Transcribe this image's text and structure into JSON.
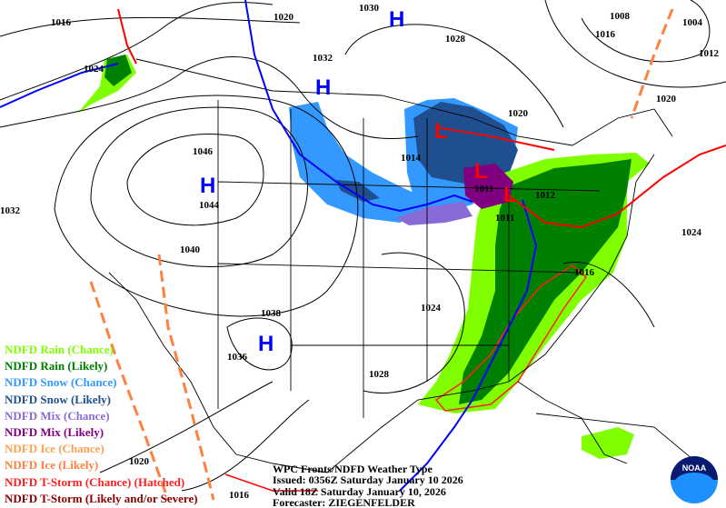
{
  "map": {
    "pressure_labels": [
      "1016",
      "1020",
      "1030",
      "1028",
      "1032",
      "1024",
      "1008",
      "1016",
      "1004",
      "1012",
      "1020",
      "1020",
      "1046",
      "1044",
      "1014",
      "1011",
      "1012",
      "1011",
      "1032",
      "1040",
      "1024",
      "1016",
      "1024",
      "1038",
      "1036",
      "1028",
      "1020",
      "1016"
    ],
    "highs": [
      "H",
      "H",
      "H",
      "H"
    ],
    "lows": [
      "L",
      "L",
      "L"
    ],
    "colors": {
      "rain_chance": "#80ff00",
      "rain_likely": "#008000",
      "snow_chance": "#3399ff",
      "snow_likely": "#1f4f8f",
      "mix_chance": "#8a6ad6",
      "mix_likely": "#800080",
      "ice_chance": "#ffa050",
      "ice_likely": "#ff8040",
      "tstorm_chance": "#ff2020",
      "tstorm_likely": "#8b0000",
      "high": "#0000ff",
      "low": "#ff0000",
      "cold_front": "#0000ff",
      "warm_front": "#ff0000"
    }
  },
  "legend": [
    {
      "label": "NDFD Rain (Chance)",
      "color": "#80ff00"
    },
    {
      "label": "NDFD Rain (Likely)",
      "color": "#008000"
    },
    {
      "label": "NDFD Snow (Chance)",
      "color": "#3399ff"
    },
    {
      "label": "NDFD Snow (Likely)",
      "color": "#1f4f8f"
    },
    {
      "label": "NDFD Mix (Chance)",
      "color": "#8a6ad6"
    },
    {
      "label": "NDFD Mix (Likely)",
      "color": "#800080"
    },
    {
      "label": "NDFD Ice (Chance)",
      "color": "#ffa050"
    },
    {
      "label": "NDFD Ice (Likely)",
      "color": "#ff8040"
    },
    {
      "label": "NDFD T-Storm (Chance) (Hatched)",
      "color": "#ff2020"
    },
    {
      "label": "NDFD T-Storm (Likely and/or Severe)",
      "color": "#8b0000"
    }
  ],
  "info": {
    "title": "WPC Fronts/NDFD Weather Type",
    "issued": "Issued: 0356Z Saturday January 10 2026",
    "valid": "Valid 18Z Saturday January 10, 2026",
    "forecaster": "Forecaster: ZIEGENFELDER"
  },
  "logo": {
    "text": "NOAA"
  }
}
